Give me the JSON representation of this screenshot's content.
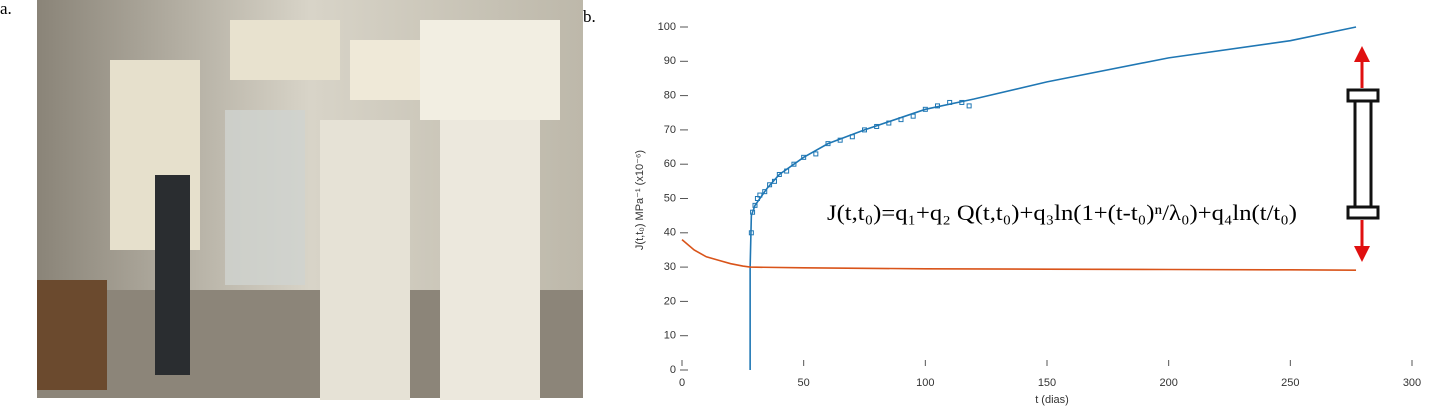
{
  "panel_labels": [
    "a.",
    "b."
  ],
  "chart_data": {
    "type": "line",
    "xlabel": "t (dias)",
    "ylabel": "J(t,t₀)  MPa⁻¹ (x10⁻⁶)",
    "annotation": "J(t,t₀)=q₁+q₂ Q(t,t₀)+q₃ln(1+(t-t₀)ⁿ/λ₀)+q₄ln(t/t₀)",
    "xlim": [
      0,
      300
    ],
    "ylim": [
      0,
      100
    ],
    "xticks": [
      0,
      50,
      100,
      150,
      200,
      250,
      300
    ],
    "yticks": [
      0,
      10,
      20,
      30,
      40,
      50,
      60,
      70,
      80,
      90,
      100
    ],
    "series": [
      {
        "color": "#1f77b4",
        "style": "line",
        "x": [
          28,
          28,
          28.5,
          30,
          35,
          40,
          50,
          60,
          75,
          100,
          120,
          150,
          200,
          250,
          277
        ],
        "values": [
          0,
          30,
          45,
          48,
          53,
          57,
          62,
          66,
          70,
          76,
          79,
          84,
          91,
          96,
          100
        ]
      },
      {
        "color": "#1f77b4",
        "style": "markers",
        "x": [
          28.5,
          29,
          30,
          31,
          32,
          34,
          36,
          38,
          40,
          43,
          46,
          50,
          55,
          60,
          65,
          70,
          75,
          80,
          85,
          90,
          95,
          100,
          105,
          110,
          115,
          118
        ],
        "values": [
          40,
          46,
          48,
          50,
          51,
          52,
          54,
          55,
          57,
          58,
          60,
          62,
          63,
          66,
          67,
          68,
          70,
          71,
          72,
          73,
          74,
          76,
          77,
          78,
          78,
          77
        ]
      },
      {
        "color": "#d9541a",
        "style": "line",
        "x": [
          0,
          5,
          10,
          15,
          20,
          25,
          28,
          50,
          100,
          150,
          200,
          250,
          277
        ],
        "values": [
          38,
          35,
          33,
          32,
          31,
          30.3,
          30,
          29.8,
          29.5,
          29.4,
          29.3,
          29.2,
          29.1
        ]
      }
    ]
  }
}
